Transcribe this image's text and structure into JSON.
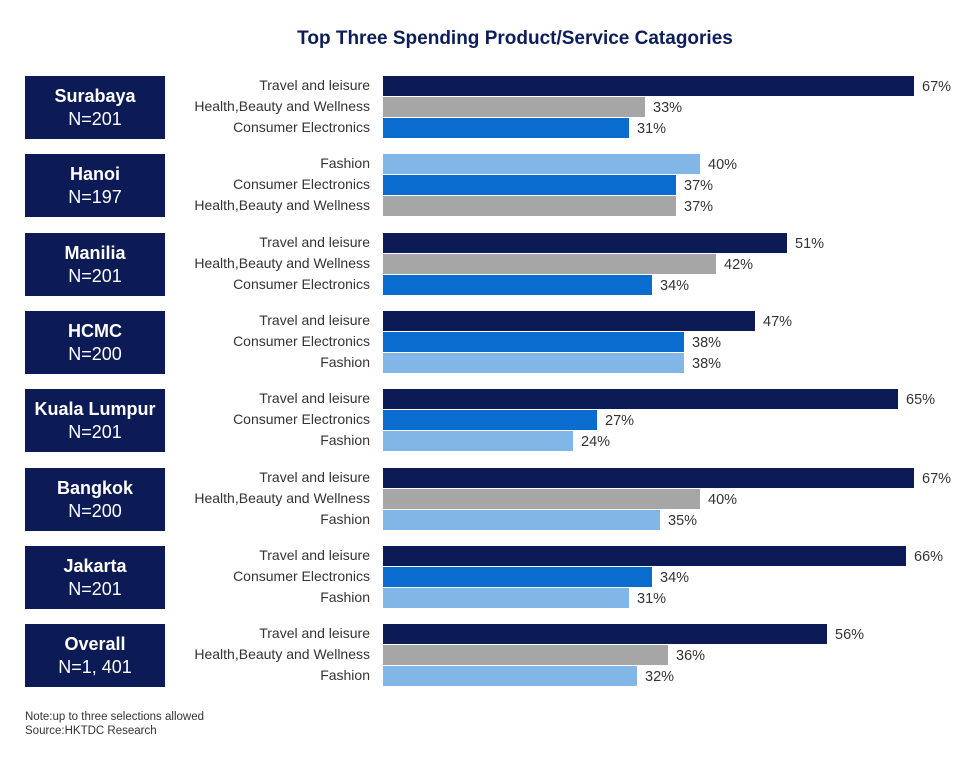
{
  "chart_data": {
    "type": "bar",
    "orientation": "horizontal",
    "title": "Top Three Spending Product/Service Catagories",
    "xlim": [
      0,
      70
    ],
    "unit": "%",
    "colors": {
      "Travel and leisure": "#0c1a56",
      "Health,Beauty and Wellness": "#a6a6a6",
      "Consumer Electronics": "#0a6ccf",
      "Fashion": "#82b6e6"
    },
    "groups": [
      {
        "city": "Surabaya",
        "n": "N=201",
        "bars": [
          {
            "category": "Travel and leisure",
            "value": 67,
            "label": "67%"
          },
          {
            "category": "Health,Beauty and Wellness",
            "value": 33,
            "label": "33%"
          },
          {
            "category": "Consumer Electronics",
            "value": 31,
            "label": "31%"
          }
        ]
      },
      {
        "city": "Hanoi",
        "n": "N=197",
        "bars": [
          {
            "category": "Fashion",
            "value": 40,
            "label": "40%"
          },
          {
            "category": "Consumer Electronics",
            "value": 37,
            "label": "37%"
          },
          {
            "category": "Health,Beauty and Wellness",
            "value": 37,
            "label": "37%"
          }
        ]
      },
      {
        "city": "Manilia",
        "n": "N=201",
        "bars": [
          {
            "category": "Travel and leisure",
            "value": 51,
            "label": "51%"
          },
          {
            "category": "Health,Beauty and Wellness",
            "value": 42,
            "label": "42%"
          },
          {
            "category": "Consumer Electronics",
            "value": 34,
            "label": "34%"
          }
        ]
      },
      {
        "city": "HCMC",
        "n": "N=200",
        "bars": [
          {
            "category": "Travel and leisure",
            "value": 47,
            "label": "47%"
          },
          {
            "category": "Consumer Electronics",
            "value": 38,
            "label": "38%"
          },
          {
            "category": "Fashion",
            "value": 38,
            "label": "38%"
          }
        ]
      },
      {
        "city": "Kuala Lumpur",
        "n": "N=201",
        "bars": [
          {
            "category": "Travel and leisure",
            "value": 65,
            "label": "65%"
          },
          {
            "category": "Consumer Electronics",
            "value": 27,
            "label": "27%"
          },
          {
            "category": "Fashion",
            "value": 24,
            "label": "24%"
          }
        ]
      },
      {
        "city": "Bangkok",
        "n": "N=200",
        "bars": [
          {
            "category": "Travel and leisure",
            "value": 67,
            "label": "67%"
          },
          {
            "category": "Health,Beauty and Wellness",
            "value": 40,
            "label": "40%"
          },
          {
            "category": "Fashion",
            "value": 35,
            "label": "35%"
          }
        ]
      },
      {
        "city": "Jakarta",
        "n": "N=201",
        "bars": [
          {
            "category": "Travel and leisure",
            "value": 66,
            "label": "66%"
          },
          {
            "category": "Consumer Electronics",
            "value": 34,
            "label": "34%"
          },
          {
            "category": "Fashion",
            "value": 31,
            "label": "31%"
          }
        ]
      },
      {
        "city": "Overall",
        "n": "N=1, 401",
        "bars": [
          {
            "category": "Travel and leisure",
            "value": 56,
            "label": "56%"
          },
          {
            "category": "Health,Beauty and Wellness",
            "value": 36,
            "label": "36%"
          },
          {
            "category": "Fashion",
            "value": 32,
            "label": "32%"
          }
        ]
      }
    ]
  },
  "footnotes": {
    "note": "Note:up to three selections allowed",
    "source": "Source:HKTDC Research"
  }
}
